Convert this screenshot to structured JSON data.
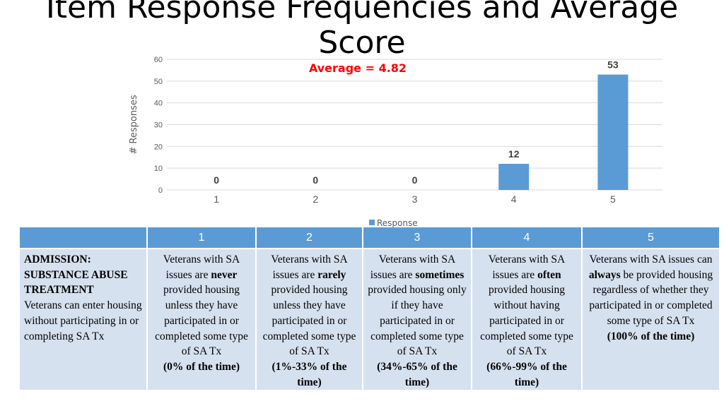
{
  "slide": {
    "title": "Item Response Frequencies and Average Score",
    "average_label": "Average = 4.82",
    "average_color": "#ff0000"
  },
  "chart_data": {
    "type": "bar",
    "categories": [
      "1",
      "2",
      "3",
      "4",
      "5"
    ],
    "series": [
      {
        "name": "Response",
        "values": [
          0,
          0,
          0,
          12,
          53
        ],
        "color": "#5b9bd5"
      }
    ],
    "xlabel": "",
    "ylabel": "# Responses",
    "ylim": [
      0,
      60
    ],
    "yticks": [
      0,
      10,
      20,
      30,
      40,
      50,
      60
    ],
    "grid": true,
    "legend": "bottom",
    "data_labels": true
  },
  "table": {
    "headers": [
      "",
      "1",
      "2",
      "3",
      "4",
      "5"
    ],
    "row_head": {
      "bold": "ADMISSION: SUBSTANCE ABUSE TREATMENT",
      "text": "Veterans can enter housing without participating in or completing SA Tx"
    },
    "cells": [
      {
        "pre": "Veterans with SA issues are ",
        "bold": "never",
        "post": " provided housing unless they have participated in or completed some type of SA Tx",
        "pct": "(0% of the time)"
      },
      {
        "pre": "Veterans with SA issues are ",
        "bold": "rarely",
        "post": " provided housing unless they have participated in or completed some type of SA Tx",
        "pct": "(1%-33% of the time)"
      },
      {
        "pre": "Veterans with SA issues are ",
        "bold": "sometimes",
        "post": " provided housing only if they have participated in or completed some type of SA Tx",
        "pct": "(34%-65% of the time)"
      },
      {
        "pre": "Veterans with SA issues are ",
        "bold": "often",
        "post": " provided housing without having participated in or completed some type of SA Tx",
        "pct": "(66%-99% of the time)"
      },
      {
        "pre": "Veterans with SA issues can ",
        "bold": "always",
        "post": " be provided housing regardless of whether they participated in or completed some type of SA Tx",
        "pct": "(100% of the time)"
      }
    ]
  }
}
